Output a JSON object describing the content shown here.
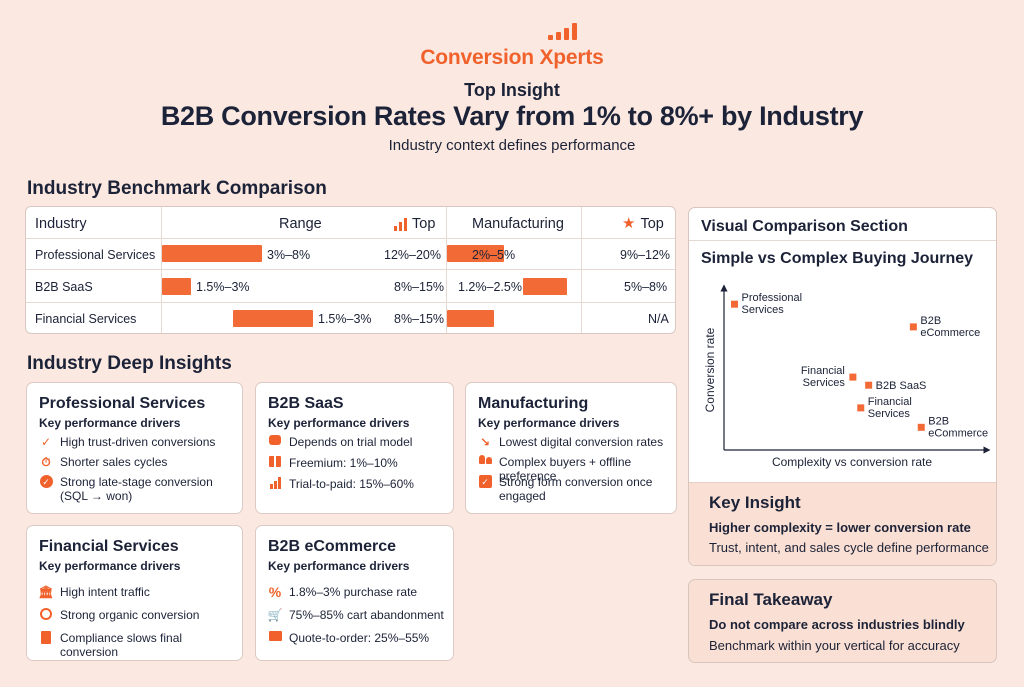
{
  "brand": {
    "name": "Conversion Xperts",
    "logo_icon": "bar-chart-icon",
    "color": "#f0612c"
  },
  "header": {
    "eyebrow": "Top Insight",
    "title": "B2B Conversion Rates Vary from 1% to 8%+ by Industry",
    "subtitle": "Industry context defines performance"
  },
  "benchmark": {
    "section_title": "Industry Benchmark Comparison",
    "columns": [
      "Industry",
      "Range",
      "Top",
      "Manufacturing",
      "Top"
    ],
    "rows": [
      {
        "industry": "Professional Services",
        "range": "3%–8%",
        "range_bar_pct": 0.35,
        "top": "12%–20%",
        "manufacturing": "2%–5%",
        "manufacturing_bar_pct": 0.42,
        "mfg_top": "9%–12%"
      },
      {
        "industry": "B2B SaaS",
        "range": "1.5%–3%",
        "range_bar_pct": 0.1,
        "top": "8%–15%",
        "manufacturing": "1.2%–2.5%",
        "manufacturing_bar_pct": 0.25,
        "mfg_top": "5%–8%"
      },
      {
        "industry": "Financial Services",
        "range": "1.5%–3%",
        "range_bar_pct": 0.28,
        "top": "8%–15%",
        "manufacturing": "",
        "manufacturing_bar_pct": 0.27,
        "mfg_top": "N/A"
      }
    ]
  },
  "deep_insights": {
    "section_title": "Industry Deep Insights",
    "cards": [
      {
        "title": "Professional Services",
        "subtitle": "Key performance drivers",
        "items": [
          {
            "icon": "check-icon",
            "text": "High trust-driven conversions"
          },
          {
            "icon": "stopwatch-icon",
            "text": "Shorter sales cycles"
          },
          {
            "icon": "check-circle-icon",
            "text": "Strong late-stage conversion",
            "text2": "(SQL → won)"
          }
        ]
      },
      {
        "title": "B2B SaaS",
        "subtitle": "Key performance drivers",
        "items": [
          {
            "icon": "chat-bubble-icon",
            "text": "Depends on trial model"
          },
          {
            "icon": "gift-icon",
            "text": "Freemium: 1%–10%"
          },
          {
            "icon": "bar-chart-icon",
            "text": "Trial-to-paid: 15%–60%"
          }
        ]
      },
      {
        "title": "Manufacturing",
        "subtitle": "Key performance drivers",
        "items": [
          {
            "icon": "trend-down-icon",
            "text": "Lowest digital conversion rates"
          },
          {
            "icon": "people-icon",
            "text": "Complex buyers + offline preference"
          },
          {
            "icon": "checkbox-icon",
            "text": "Strong form conversion once",
            "text2": "engaged"
          }
        ]
      },
      {
        "title": "Financial Services",
        "subtitle": "Key performance drivers",
        "items": [
          {
            "icon": "bank-icon",
            "text": "High intent traffic"
          },
          {
            "icon": "user-coin-icon",
            "text": "Strong organic conversion"
          },
          {
            "icon": "document-icon",
            "text": "Compliance slows final conversion"
          }
        ]
      },
      {
        "title": "B2B eCommerce",
        "subtitle": "Key performance drivers",
        "items": [
          {
            "icon": "percent-icon",
            "text": "1.8%–3% purchase rate"
          },
          {
            "icon": "cart-icon",
            "text": "75%–85% cart abandonment"
          },
          {
            "icon": "folder-icon",
            "text": "Quote-to-order: 25%–55%"
          }
        ]
      }
    ]
  },
  "visual": {
    "section_title": "Visual Comparison Section",
    "subtitle": "Simple vs Complex Buying Journey",
    "chart_data": {
      "type": "scatter",
      "xlabel": "Complexity vs conversion rate",
      "ylabel": "Conversion rate",
      "points": [
        {
          "label": "Professional Services",
          "x": 0.04,
          "y": 0.9,
          "label_side": "right"
        },
        {
          "label": "B2B eCommerce",
          "x": 0.72,
          "y": 0.76,
          "label_side": "right"
        },
        {
          "label": "Financial Services",
          "x": 0.49,
          "y": 0.45,
          "label_side": "left"
        },
        {
          "label": "B2B SaaS",
          "x": 0.55,
          "y": 0.4,
          "label_side": "right"
        },
        {
          "label": "Financial Services",
          "x": 0.52,
          "y": 0.26,
          "label_side": "right"
        },
        {
          "label": "B2B eCommerce",
          "x": 0.75,
          "y": 0.14,
          "label_side": "right"
        }
      ]
    },
    "key_insight": {
      "title": "Key Insight",
      "line1": "Higher complexity = lower conversion rate",
      "line2": "Trust, intent, and sales cycle define performance"
    }
  },
  "takeaway": {
    "title": "Final Takeaway",
    "line1": "Do not compare across industries blindly",
    "line2": "Benchmark within your vertical for accuracy"
  },
  "colors": {
    "accent": "#f26a35",
    "text": "#1c2237",
    "bg": "#fbe9e1"
  }
}
